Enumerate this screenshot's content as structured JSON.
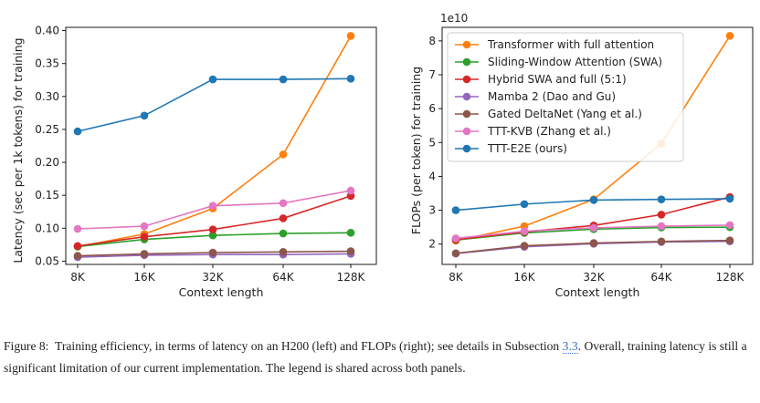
{
  "colors": {
    "orange": "#ff7f0e",
    "green": "#2ca02c",
    "red": "#d62728",
    "purple": "#9467bd",
    "brown": "#8c564b",
    "pink": "#e377c2",
    "blue": "#1f77b4"
  },
  "chart_data": [
    {
      "type": "line",
      "panel": "left",
      "categories": [
        "8K",
        "16K",
        "32K",
        "64K",
        "128K"
      ],
      "xlabel": "Context length",
      "ylabel": "Latency (sec per 1k tokens) for training",
      "ylim": [
        0.045,
        0.405
      ],
      "yticks": [
        0.05,
        0.1,
        0.15,
        0.2,
        0.25,
        0.3,
        0.35,
        0.4
      ],
      "ytick_labels": [
        "0.05",
        "0.10",
        "0.15",
        "0.20",
        "0.25",
        "0.30",
        "0.35",
        "0.40"
      ],
      "series": [
        {
          "name": "Transformer with full attention",
          "color": "#ff7f0e",
          "values": [
            0.072,
            0.091,
            0.13,
            0.212,
            0.392
          ]
        },
        {
          "name": "Sliding-Window Attention (SWA)",
          "color": "#2ca02c",
          "values": [
            0.072,
            0.083,
            0.089,
            0.092,
            0.093
          ]
        },
        {
          "name": "Hybrid SWA and full (5:1)",
          "color": "#d62728",
          "values": [
            0.073,
            0.087,
            0.098,
            0.115,
            0.149
          ]
        },
        {
          "name": "Mamba 2 (Dao and Gu)",
          "color": "#9467bd",
          "values": [
            0.056,
            0.059,
            0.06,
            0.06,
            0.061
          ]
        },
        {
          "name": "Gated DeltaNet (Yang et al.)",
          "color": "#8c564b",
          "values": [
            0.058,
            0.061,
            0.063,
            0.064,
            0.065
          ]
        },
        {
          "name": "TTT-KVB (Zhang et al.)",
          "color": "#e377c2",
          "values": [
            0.099,
            0.103,
            0.134,
            0.138,
            0.157
          ]
        },
        {
          "name": "TTT-E2E (ours)",
          "color": "#1f77b4",
          "values": [
            0.247,
            0.271,
            0.326,
            0.326,
            0.327
          ]
        }
      ]
    },
    {
      "type": "line",
      "panel": "right",
      "categories": [
        "8K",
        "16K",
        "32K",
        "64K",
        "128K"
      ],
      "xlabel": "Context length",
      "ylabel": "FLOPs (per token) for training",
      "offset_label": "1e10",
      "ylim": [
        1.4,
        8.4
      ],
      "yticks": [
        2,
        3,
        4,
        5,
        6,
        7,
        8
      ],
      "ytick_labels": [
        "2",
        "3",
        "4",
        "5",
        "6",
        "7",
        "8"
      ],
      "legend_position": "upper-left",
      "series": [
        {
          "name": "Transformer with full attention",
          "color": "#ff7f0e",
          "values": [
            2.1,
            2.53,
            3.32,
            4.97,
            8.15
          ]
        },
        {
          "name": "Sliding-Window Attention (SWA)",
          "color": "#2ca02c",
          "values": [
            2.12,
            2.33,
            2.44,
            2.49,
            2.5
          ]
        },
        {
          "name": "Hybrid SWA and full (5:1)",
          "color": "#d62728",
          "values": [
            2.13,
            2.36,
            2.55,
            2.87,
            3.39
          ]
        },
        {
          "name": "Mamba 2 (Dao and Gu)",
          "color": "#9467bd",
          "values": [
            1.72,
            1.92,
            2.01,
            2.06,
            2.08
          ]
        },
        {
          "name": "Gated DeltaNet (Yang et al.)",
          "color": "#8c564b",
          "values": [
            1.73,
            1.95,
            2.03,
            2.08,
            2.11
          ]
        },
        {
          "name": "TTT-KVB (Zhang et al.)",
          "color": "#e377c2",
          "values": [
            2.17,
            2.38,
            2.48,
            2.53,
            2.56
          ]
        },
        {
          "name": "TTT-E2E (ours)",
          "color": "#1f77b4",
          "values": [
            3.0,
            3.18,
            3.3,
            3.32,
            3.34
          ]
        }
      ]
    }
  ],
  "caption": {
    "label": "Figure 8:",
    "text_before_ref": "Training efficiency, in terms of latency on an H200 (left) and FLOPs (right); see details in Subsection",
    "ref": "3.3",
    "text_after_ref": ". Overall, training latency is still a significant limitation of our current implementation. The legend is shared across both panels."
  }
}
